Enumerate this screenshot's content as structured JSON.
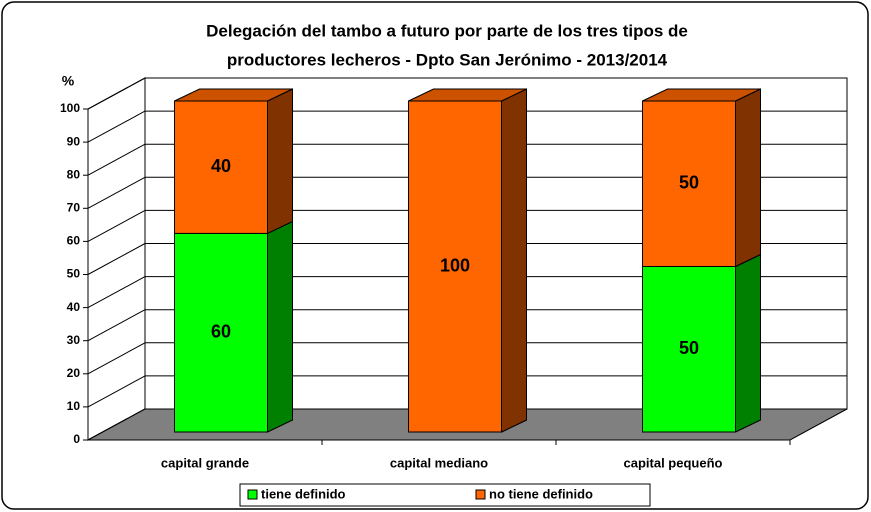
{
  "chart_data": {
    "type": "bar3d_stacked",
    "title": [
      "Delegación del tambo a futuro por parte de los tres tipos de",
      "productores lecheros - Dpto San Jerónimo - 2013/2014"
    ],
    "y_label": "%",
    "categories": [
      "capital grande",
      "capital mediano",
      "capital pequeño"
    ],
    "series": [
      {
        "name": "tiene definido",
        "color": "#00ff00",
        "values": [
          60,
          0,
          50
        ]
      },
      {
        "name": "no tiene definido",
        "color": "#ff6600",
        "values": [
          40,
          100,
          50
        ]
      }
    ],
    "ylim": [
      0,
      100
    ],
    "yticks": [
      0,
      10,
      20,
      30,
      40,
      50,
      60,
      70,
      80,
      90,
      100
    ],
    "grid": true,
    "legend": "bottom"
  }
}
